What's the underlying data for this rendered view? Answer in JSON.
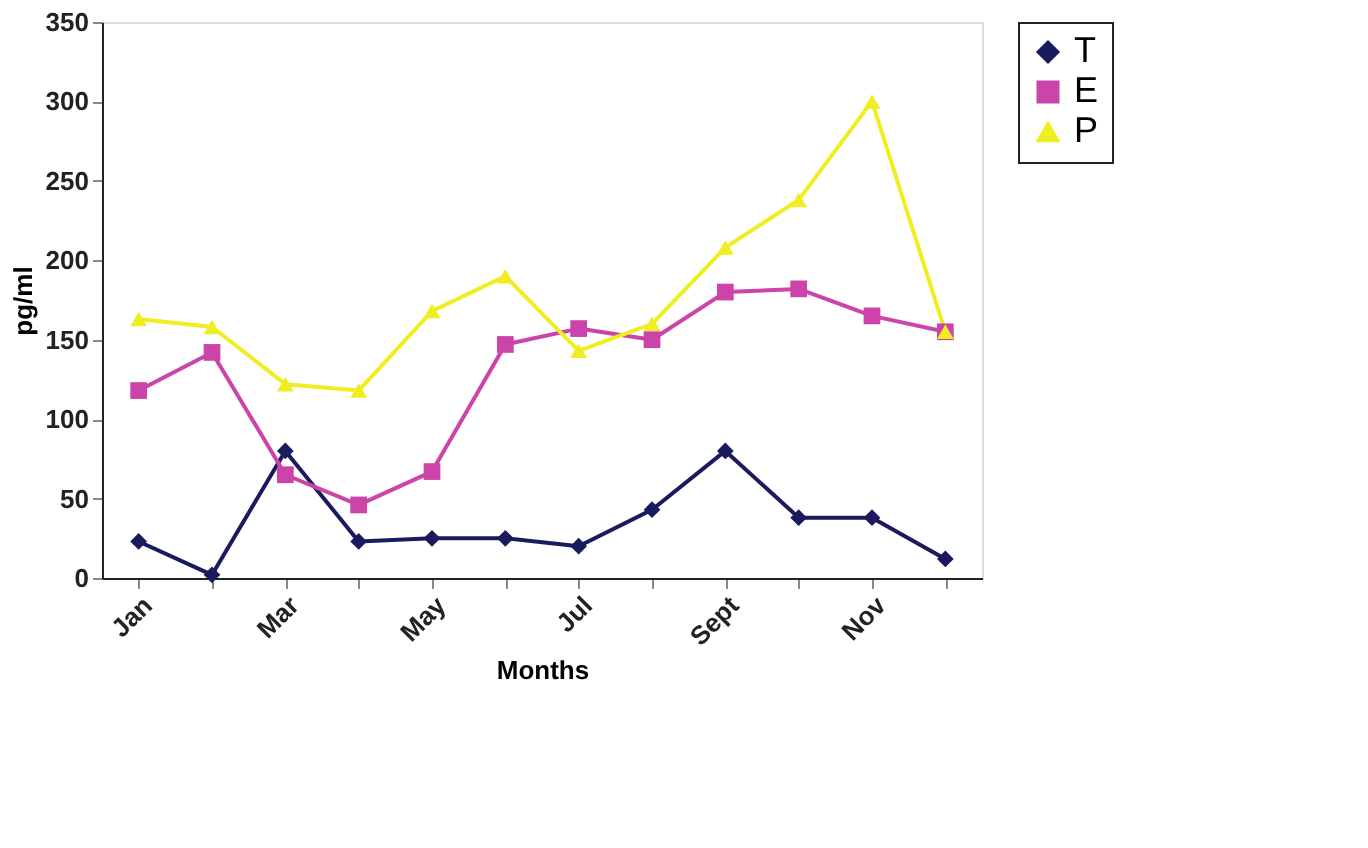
{
  "chart_data": {
    "type": "line",
    "xlabel": "Months",
    "ylabel": "pg/ml",
    "categories": [
      "Jan",
      null,
      "Mar",
      null,
      "May",
      null,
      "Jul",
      null,
      "Sept",
      null,
      "Nov",
      null
    ],
    "series": [
      {
        "name": "T",
        "color": "#1a1a5e",
        "marker": "diamond",
        "values": [
          23,
          2,
          80,
          23,
          25,
          25,
          20,
          43,
          80,
          38,
          38,
          12
        ]
      },
      {
        "name": "E",
        "color": "#cc44aa",
        "marker": "square",
        "values": [
          118,
          142,
          65,
          46,
          67,
          147,
          157,
          150,
          180,
          182,
          165,
          155
        ]
      },
      {
        "name": "P",
        "color": "#eeee22",
        "marker": "triangle",
        "values": [
          163,
          158,
          122,
          118,
          168,
          190,
          143,
          160,
          208,
          238,
          300,
          155
        ]
      }
    ],
    "ylim": [
      0,
      350
    ],
    "yticks": [
      0,
      50,
      100,
      150,
      200,
      250,
      300,
      350
    ],
    "grid": false,
    "legend": "right",
    "line_style": "solid"
  }
}
